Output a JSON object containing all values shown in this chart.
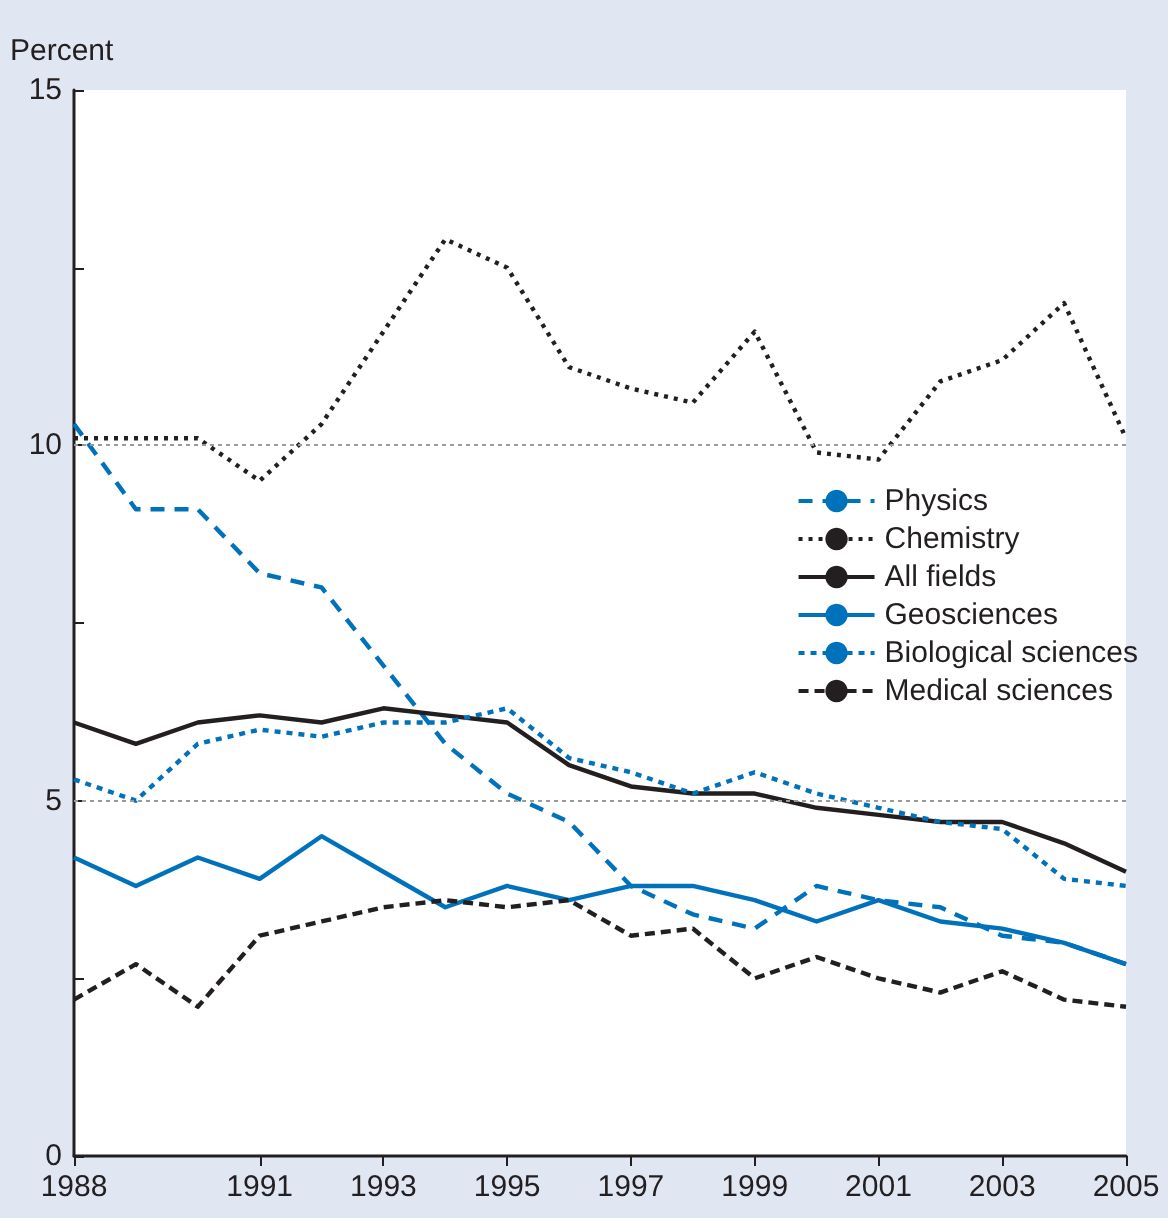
{
  "chart_data": {
    "type": "line",
    "ylabel": "Percent",
    "x": [
      1988,
      1989,
      1990,
      1991,
      1992,
      1993,
      1994,
      1995,
      1996,
      1997,
      1998,
      1999,
      2000,
      2001,
      2002,
      2003,
      2004,
      2005
    ],
    "xlim": [
      1988,
      2005
    ],
    "xticks": [
      1988,
      1991,
      1993,
      1995,
      1997,
      1999,
      2001,
      2003,
      2005
    ],
    "ylim": [
      0,
      15
    ],
    "yticks": [
      0,
      {
        "value": 2.5,
        "label": null
      },
      5,
      {
        "value": 7.5,
        "label": null
      },
      10,
      {
        "value": 12.5,
        "label": null
      },
      15
    ],
    "grid": "y",
    "legend": "right",
    "marker": "none",
    "series": [
      {
        "name": "Physics",
        "color": "#0072bc",
        "line_style": "dashed",
        "values": [
          10.3,
          9.1,
          9.1,
          8.2,
          8.0,
          6.9,
          5.8,
          5.1,
          4.7,
          3.8,
          3.4,
          3.2,
          3.8,
          3.6,
          3.5,
          3.1,
          3.0,
          2.7
        ]
      },
      {
        "name": "Chemistry",
        "color": "#231f20",
        "line_style": "dotted",
        "values": [
          10.1,
          10.1,
          10.1,
          9.5,
          10.3,
          11.6,
          12.9,
          12.5,
          11.1,
          10.8,
          10.6,
          11.6,
          9.9,
          9.8,
          10.9,
          11.2,
          12.0,
          10.1
        ]
      },
      {
        "name": "All fields",
        "color": "#231f20",
        "line_style": "solid",
        "values": [
          6.1,
          5.8,
          6.1,
          6.2,
          6.1,
          6.3,
          6.2,
          6.1,
          5.5,
          5.2,
          5.1,
          5.1,
          4.9,
          4.8,
          4.7,
          4.7,
          4.4,
          4.0
        ]
      },
      {
        "name": "Geosciences",
        "color": "#0072bc",
        "line_style": "solid",
        "values": [
          4.2,
          3.8,
          4.2,
          3.9,
          4.5,
          4.0,
          3.5,
          3.8,
          3.6,
          3.8,
          3.8,
          3.6,
          3.3,
          3.6,
          3.3,
          3.2,
          3.0,
          2.7
        ]
      },
      {
        "name": "Biological sciences",
        "color": "#0072bc",
        "line_style": "dashed",
        "values": [
          5.3,
          5.0,
          5.8,
          6.0,
          5.9,
          6.1,
          6.1,
          6.3,
          5.6,
          5.4,
          5.1,
          5.4,
          5.1,
          4.9,
          4.7,
          4.6,
          3.9,
          3.8
        ]
      },
      {
        "name": "Medical sciences",
        "color": "#231f20",
        "line_style": "dashed",
        "values": [
          2.2,
          2.7,
          2.1,
          3.1,
          3.3,
          3.5,
          3.6,
          3.5,
          3.6,
          3.1,
          3.2,
          2.5,
          2.8,
          2.5,
          2.3,
          2.6,
          2.2,
          2.1
        ]
      }
    ]
  }
}
